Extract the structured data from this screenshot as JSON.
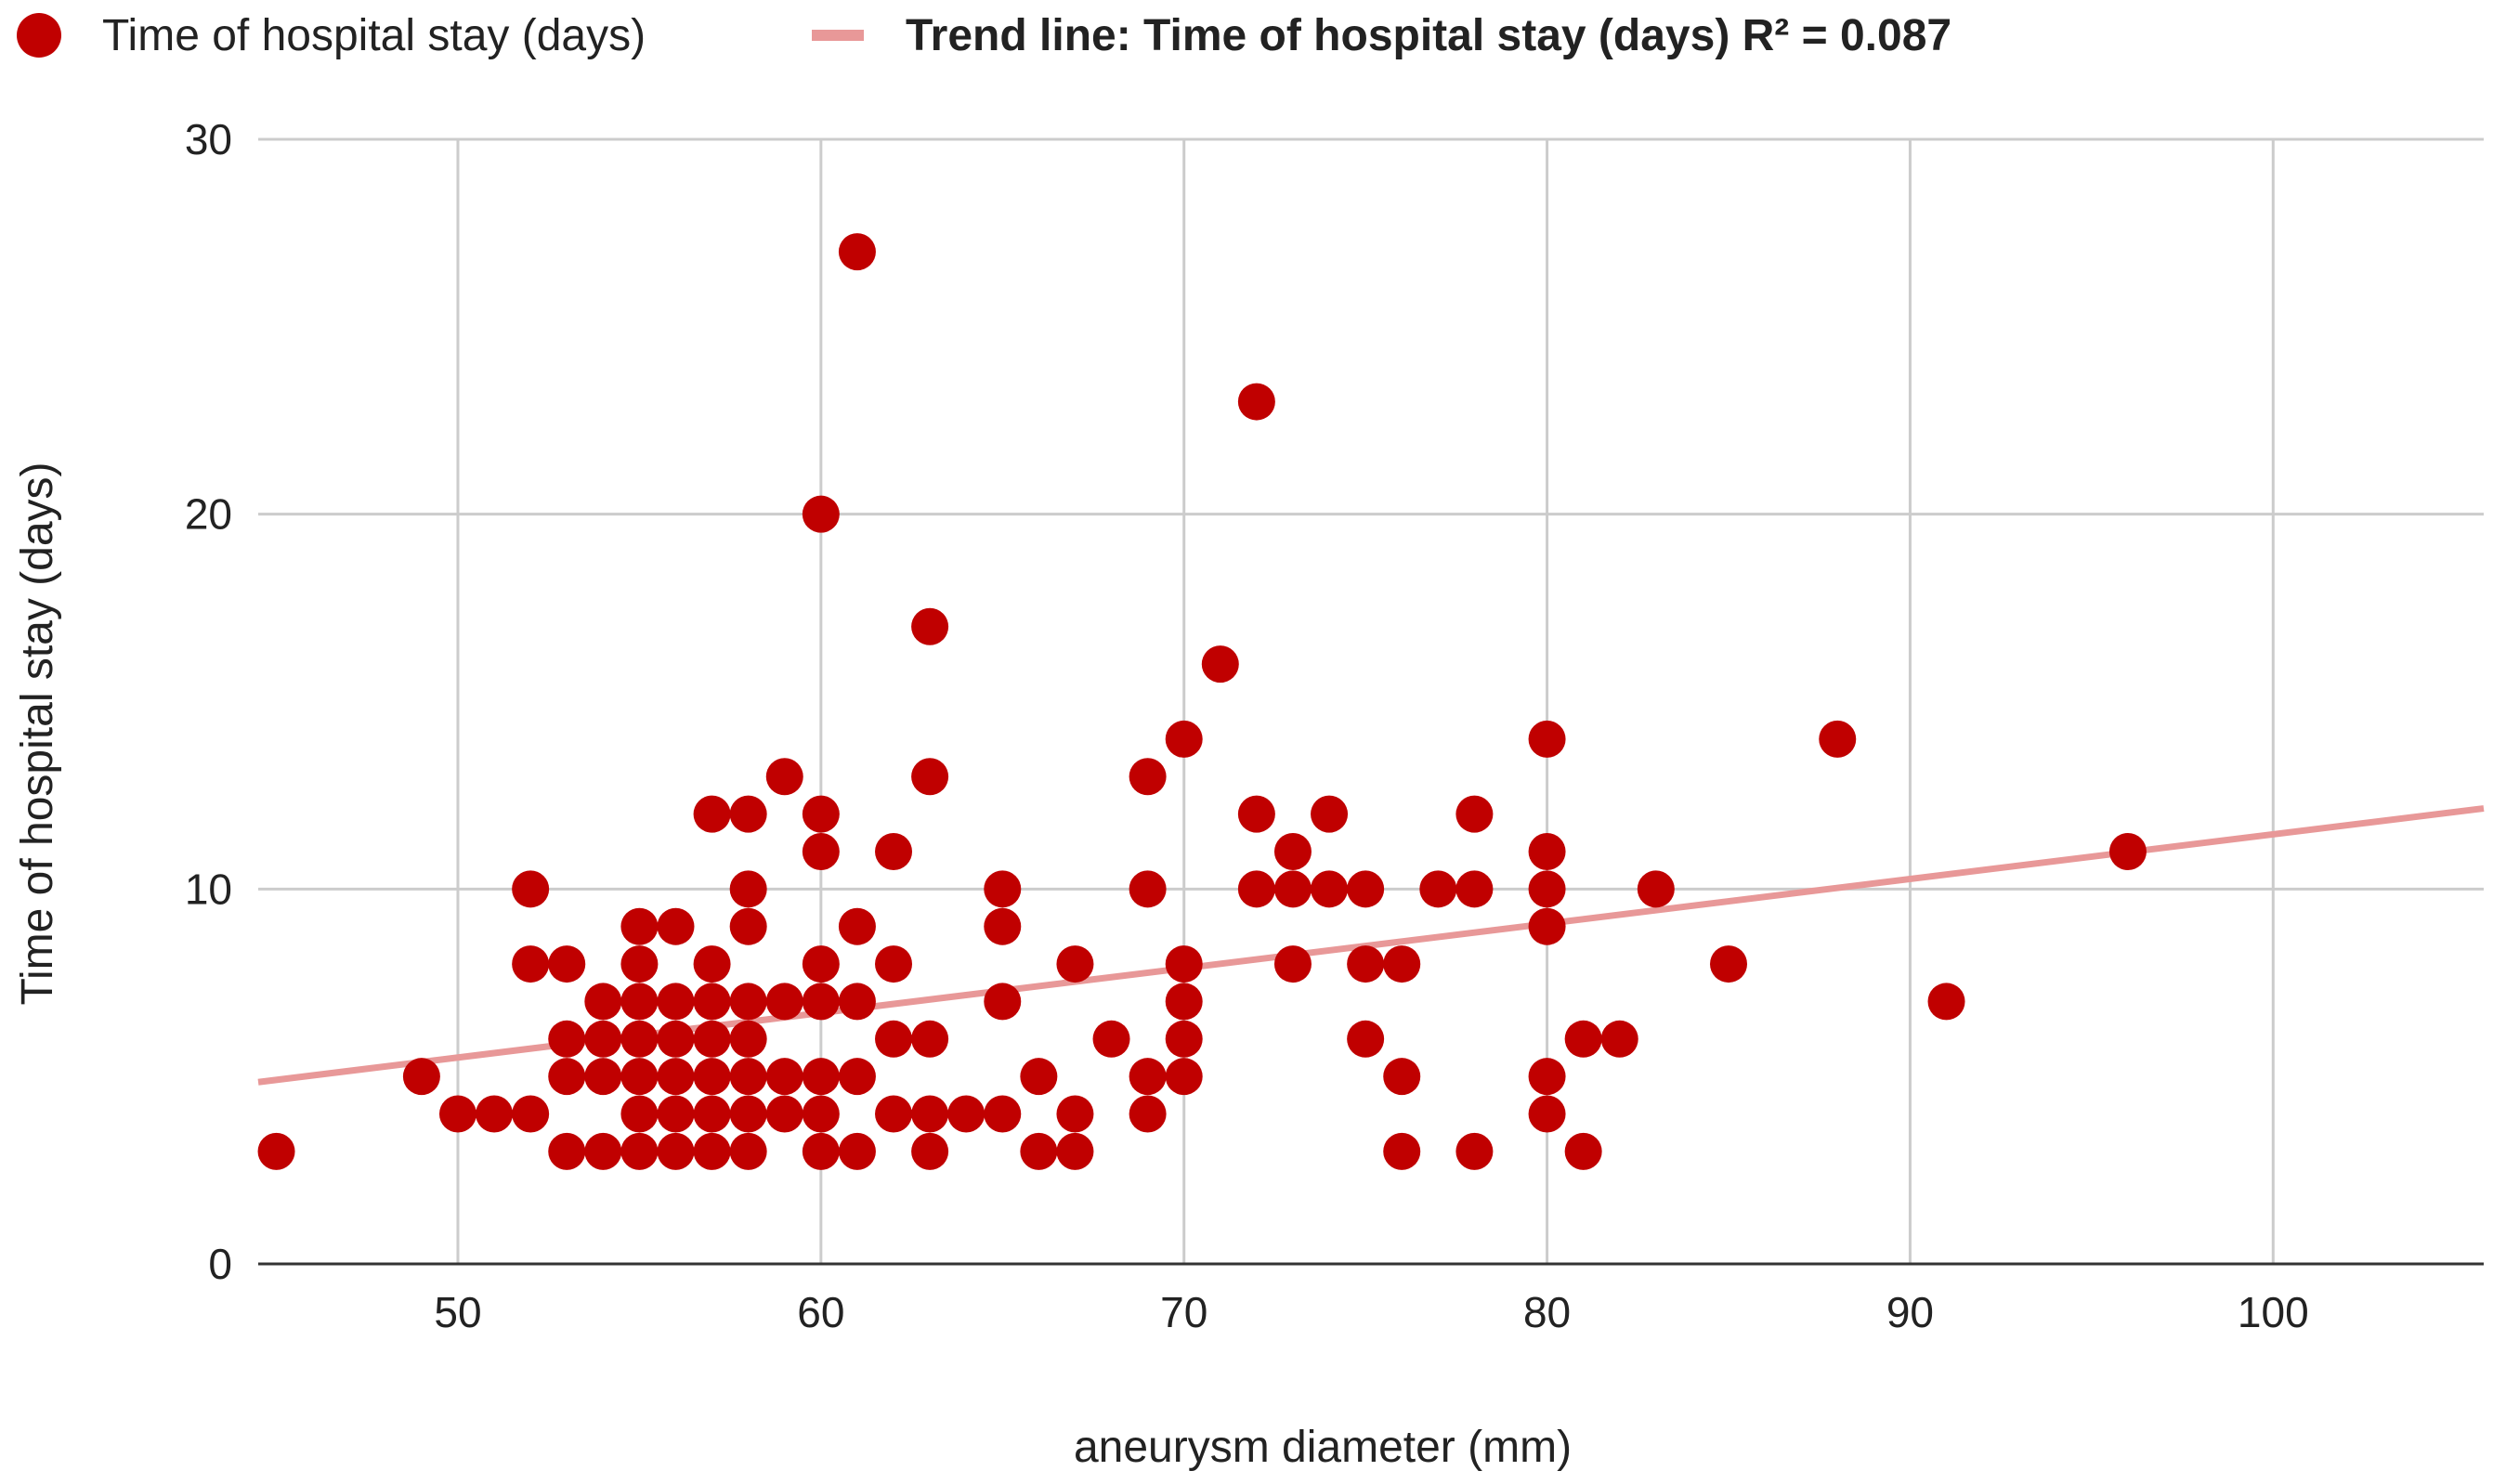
{
  "chart_data": {
    "type": "scatter",
    "xlabel": "aneurysm diameter (mm)",
    "ylabel": "Time of hospital stay (days)",
    "xlim": [
      44.5,
      105.8
    ],
    "ylim": [
      0,
      30
    ],
    "x_ticks": [
      50,
      60,
      70,
      80,
      90,
      100
    ],
    "y_ticks": [
      0,
      10,
      20,
      30
    ],
    "grid": true,
    "legend_position": "top-left",
    "series": [
      {
        "name": "Time of hospital stay (days)",
        "color": "#c00000",
        "points": [
          [
            45,
            3
          ],
          [
            49,
            5
          ],
          [
            50,
            4
          ],
          [
            51,
            4
          ],
          [
            52,
            10
          ],
          [
            52,
            8
          ],
          [
            52,
            4
          ],
          [
            53,
            8
          ],
          [
            53,
            6
          ],
          [
            53,
            5
          ],
          [
            53,
            3
          ],
          [
            54,
            7
          ],
          [
            54,
            6
          ],
          [
            54,
            5
          ],
          [
            54,
            3
          ],
          [
            55,
            9
          ],
          [
            55,
            8
          ],
          [
            55,
            7
          ],
          [
            55,
            6
          ],
          [
            55,
            5
          ],
          [
            55,
            4
          ],
          [
            55,
            3
          ],
          [
            56,
            9
          ],
          [
            56,
            7
          ],
          [
            56,
            6
          ],
          [
            56,
            5
          ],
          [
            56,
            4
          ],
          [
            56,
            3
          ],
          [
            57,
            12
          ],
          [
            57,
            8
          ],
          [
            57,
            7
          ],
          [
            57,
            6
          ],
          [
            57,
            5
          ],
          [
            57,
            4
          ],
          [
            57,
            3
          ],
          [
            58,
            12
          ],
          [
            58,
            10
          ],
          [
            58,
            9
          ],
          [
            58,
            7
          ],
          [
            58,
            6
          ],
          [
            58,
            5
          ],
          [
            58,
            4
          ],
          [
            58,
            3
          ],
          [
            59,
            13
          ],
          [
            59,
            7
          ],
          [
            59,
            5
          ],
          [
            59,
            4
          ],
          [
            60,
            20
          ],
          [
            60,
            12
          ],
          [
            60,
            11
          ],
          [
            60,
            8
          ],
          [
            60,
            7
          ],
          [
            60,
            5
          ],
          [
            60,
            4
          ],
          [
            60,
            3
          ],
          [
            61,
            27
          ],
          [
            61,
            9
          ],
          [
            61,
            7
          ],
          [
            61,
            5
          ],
          [
            61,
            3
          ],
          [
            62,
            11
          ],
          [
            62,
            8
          ],
          [
            62,
            6
          ],
          [
            62,
            4
          ],
          [
            63,
            17
          ],
          [
            63,
            13
          ],
          [
            63,
            6
          ],
          [
            63,
            4
          ],
          [
            63,
            3
          ],
          [
            64,
            4
          ],
          [
            65,
            10
          ],
          [
            65,
            9
          ],
          [
            65,
            7
          ],
          [
            65,
            4
          ],
          [
            66,
            5
          ],
          [
            66,
            3
          ],
          [
            67,
            8
          ],
          [
            67,
            4
          ],
          [
            67,
            3
          ],
          [
            68,
            6
          ],
          [
            69,
            13
          ],
          [
            69,
            10
          ],
          [
            69,
            5
          ],
          [
            69,
            4
          ],
          [
            70,
            14
          ],
          [
            70,
            8
          ],
          [
            70,
            7
          ],
          [
            70,
            6
          ],
          [
            70,
            5
          ],
          [
            71,
            16
          ],
          [
            72,
            23
          ],
          [
            72,
            12
          ],
          [
            72,
            10
          ],
          [
            73,
            11
          ],
          [
            73,
            10
          ],
          [
            73,
            8
          ],
          [
            74,
            12
          ],
          [
            74,
            10
          ],
          [
            75,
            10
          ],
          [
            75,
            8
          ],
          [
            75,
            6
          ],
          [
            76,
            8
          ],
          [
            76,
            5
          ],
          [
            76,
            3
          ],
          [
            77,
            10
          ],
          [
            78,
            12
          ],
          [
            78,
            10
          ],
          [
            78,
            3
          ],
          [
            80,
            14
          ],
          [
            80,
            11
          ],
          [
            80,
            10
          ],
          [
            80,
            9
          ],
          [
            80,
            5
          ],
          [
            80,
            4
          ],
          [
            81,
            6
          ],
          [
            81,
            3
          ],
          [
            82,
            6
          ],
          [
            83,
            10
          ],
          [
            85,
            8
          ],
          [
            88,
            14
          ],
          [
            91,
            7
          ],
          [
            96,
            11
          ]
        ]
      }
    ],
    "trendline": {
      "label": "Trend line: Time of hospital stay (days) R² = 0.087",
      "color": "#e89898",
      "x_start": 44.5,
      "y_start": 4.85,
      "x_end": 105.8,
      "y_end": 12.15
    }
  }
}
